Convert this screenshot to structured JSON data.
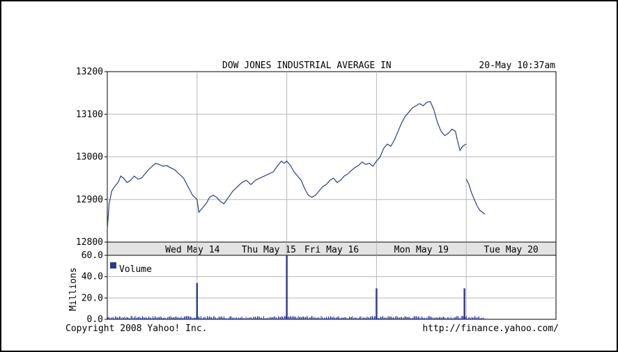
{
  "chart_data": [
    {
      "type": "line",
      "title": "DOW JONES INDUSTRIAL AVERAGE IN",
      "timestamp": "20-May 10:37am",
      "ylim": [
        12800,
        13200
      ],
      "yticks": [
        "13200",
        "13100",
        "13000",
        "12900",
        "12800"
      ],
      "ytick_values": [
        13200,
        13100,
        13000,
        12900,
        12800
      ],
      "grid": true,
      "day_labels": [
        "Wed May 14",
        "Thu May 15",
        "Fri May 16",
        "Mon May 19",
        "Tue May 20"
      ],
      "series": [
        {
          "values": [
            [
              0.0,
              12830
            ],
            [
              0.02,
              12890
            ],
            [
              0.05,
              12920
            ],
            [
              0.08,
              12930
            ],
            [
              0.12,
              12940
            ],
            [
              0.15,
              12955
            ],
            [
              0.18,
              12950
            ],
            [
              0.22,
              12940
            ],
            [
              0.26,
              12945
            ],
            [
              0.3,
              12955
            ],
            [
              0.34,
              12948
            ],
            [
              0.38,
              12950
            ],
            [
              0.42,
              12960
            ],
            [
              0.46,
              12970
            ],
            [
              0.5,
              12978
            ],
            [
              0.54,
              12985
            ],
            [
              0.58,
              12982
            ],
            [
              0.62,
              12978
            ],
            [
              0.66,
              12980
            ],
            [
              0.7,
              12975
            ],
            [
              0.75,
              12970
            ],
            [
              0.8,
              12960
            ],
            [
              0.85,
              12950
            ],
            [
              0.9,
              12930
            ],
            [
              0.95,
              12910
            ],
            [
              1.0,
              12900
            ],
            [
              1.02,
              12870
            ],
            [
              1.06,
              12880
            ],
            [
              1.1,
              12890
            ],
            [
              1.14,
              12905
            ],
            [
              1.18,
              12910
            ],
            [
              1.22,
              12905
            ],
            [
              1.26,
              12895
            ],
            [
              1.3,
              12890
            ],
            [
              1.35,
              12905
            ],
            [
              1.4,
              12920
            ],
            [
              1.45,
              12930
            ],
            [
              1.5,
              12940
            ],
            [
              1.55,
              12945
            ],
            [
              1.6,
              12935
            ],
            [
              1.65,
              12945
            ],
            [
              1.7,
              12950
            ],
            [
              1.75,
              12955
            ],
            [
              1.8,
              12960
            ],
            [
              1.85,
              12965
            ],
            [
              1.9,
              12980
            ],
            [
              1.94,
              12990
            ],
            [
              1.97,
              12985
            ],
            [
              2.0,
              12990
            ],
            [
              2.04,
              12980
            ],
            [
              2.08,
              12965
            ],
            [
              2.12,
              12955
            ],
            [
              2.16,
              12945
            ],
            [
              2.2,
              12925
            ],
            [
              2.24,
              12910
            ],
            [
              2.28,
              12905
            ],
            [
              2.32,
              12910
            ],
            [
              2.36,
              12920
            ],
            [
              2.4,
              12930
            ],
            [
              2.44,
              12935
            ],
            [
              2.48,
              12945
            ],
            [
              2.52,
              12950
            ],
            [
              2.56,
              12940
            ],
            [
              2.6,
              12945
            ],
            [
              2.64,
              12955
            ],
            [
              2.68,
              12960
            ],
            [
              2.72,
              12968
            ],
            [
              2.76,
              12975
            ],
            [
              2.8,
              12980
            ],
            [
              2.84,
              12988
            ],
            [
              2.88,
              12982
            ],
            [
              2.92,
              12985
            ],
            [
              2.96,
              12978
            ],
            [
              3.0,
              12990
            ],
            [
              3.04,
              13000
            ],
            [
              3.08,
              13020
            ],
            [
              3.12,
              13030
            ],
            [
              3.16,
              13025
            ],
            [
              3.2,
              13040
            ],
            [
              3.24,
              13060
            ],
            [
              3.28,
              13080
            ],
            [
              3.32,
              13095
            ],
            [
              3.36,
              13105
            ],
            [
              3.4,
              13115
            ],
            [
              3.44,
              13120
            ],
            [
              3.48,
              13125
            ],
            [
              3.52,
              13120
            ],
            [
              3.56,
              13128
            ],
            [
              3.6,
              13130
            ],
            [
              3.64,
              13110
            ],
            [
              3.68,
              13080
            ],
            [
              3.72,
              13060
            ],
            [
              3.76,
              13050
            ],
            [
              3.8,
              13055
            ],
            [
              3.84,
              13065
            ],
            [
              3.88,
              13060
            ],
            [
              3.9,
              13040
            ],
            [
              3.93,
              13015
            ],
            [
              3.96,
              13025
            ],
            [
              4.0,
              13030
            ],
            [
              4.0,
              12948
            ],
            [
              4.03,
              12935
            ],
            [
              4.06,
              12915
            ],
            [
              4.09,
              12900
            ],
            [
              4.12,
              12885
            ],
            [
              4.15,
              12875
            ],
            [
              4.18,
              12870
            ],
            [
              4.21,
              12865
            ]
          ]
        }
      ]
    },
    {
      "type": "bar",
      "ylabel": "Millions",
      "ylim": [
        0,
        60
      ],
      "yticks": [
        "60.0",
        "40.0",
        "20.0",
        "0.0"
      ],
      "ytick_values": [
        60,
        40,
        20,
        0
      ],
      "legend": "Volume",
      "legend_placement": "top-left",
      "series_color": "#2b3a8f",
      "spikes": [
        {
          "x": 1.0,
          "value": 34
        },
        {
          "x": 2.0,
          "value": 62
        },
        {
          "x": 3.0,
          "value": 29
        },
        {
          "x": 3.98,
          "value": 29
        }
      ],
      "baseline_level": 2
    }
  ],
  "footer": {
    "copyright": "Copyright 2008 Yahoo! Inc.",
    "url": "http://finance.yahoo.com/"
  },
  "colors": {
    "line": "#2b3a8f",
    "grid": "#b8b8b8",
    "date_band": "#e3e3e3"
  }
}
